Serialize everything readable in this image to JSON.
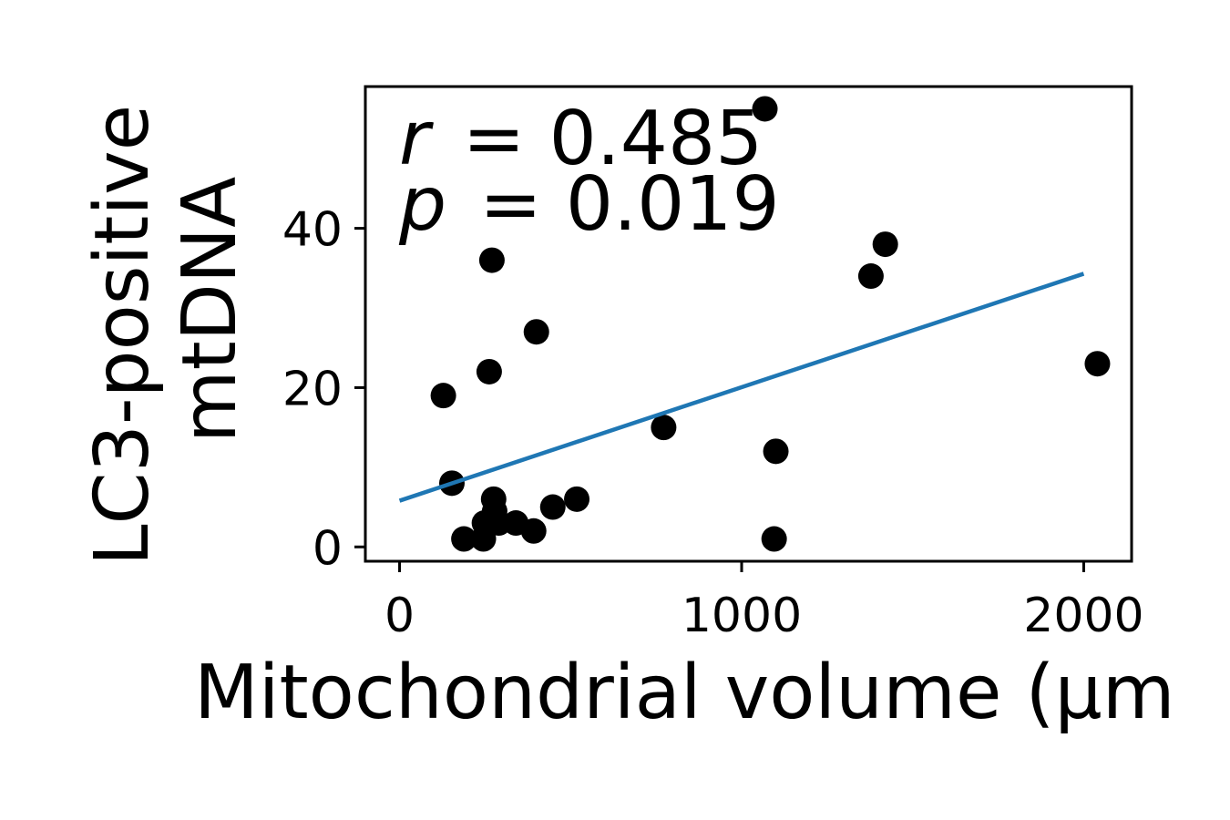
{
  "chart_data": {
    "type": "scatter",
    "xlabel": "Mitochondrial volume (μm",
    "ylabel_lines": [
      "LC3-positive",
      "mtDNA"
    ],
    "annotations": {
      "r_symbol": "r",
      "r_value": "= 0.485",
      "p_symbol": "p",
      "p_value": "= 0.019"
    },
    "xlim": [
      -100,
      2140
    ],
    "ylim": [
      -1.8,
      57.8
    ],
    "x_ticks": [
      0,
      1000,
      2000
    ],
    "x_tick_labels": [
      "0",
      "1000",
      "2000"
    ],
    "y_ticks": [
      0,
      20,
      40
    ],
    "y_tick_labels": [
      "0",
      "20",
      "40"
    ],
    "grid": false,
    "points": [
      {
        "x": 1068,
        "y": 55
      },
      {
        "x": 1420,
        "y": 38
      },
      {
        "x": 1378,
        "y": 34
      },
      {
        "x": 270,
        "y": 36
      },
      {
        "x": 400,
        "y": 27
      },
      {
        "x": 262,
        "y": 22
      },
      {
        "x": 2040,
        "y": 23
      },
      {
        "x": 128,
        "y": 19
      },
      {
        "x": 772,
        "y": 15
      },
      {
        "x": 1100,
        "y": 12
      },
      {
        "x": 153,
        "y": 8
      },
      {
        "x": 275,
        "y": 6
      },
      {
        "x": 518,
        "y": 6
      },
      {
        "x": 448,
        "y": 5
      },
      {
        "x": 278,
        "y": 4.5
      },
      {
        "x": 290,
        "y": 3
      },
      {
        "x": 340,
        "y": 3
      },
      {
        "x": 248,
        "y": 3
      },
      {
        "x": 392,
        "y": 2
      },
      {
        "x": 188,
        "y": 1
      },
      {
        "x": 245,
        "y": 1
      },
      {
        "x": 1095,
        "y": 1
      }
    ],
    "point_color": "#000000",
    "fit_line": {
      "x": [
        0,
        2000
      ],
      "y": [
        5.8,
        34.3
      ],
      "color": "#1f77b4"
    }
  }
}
